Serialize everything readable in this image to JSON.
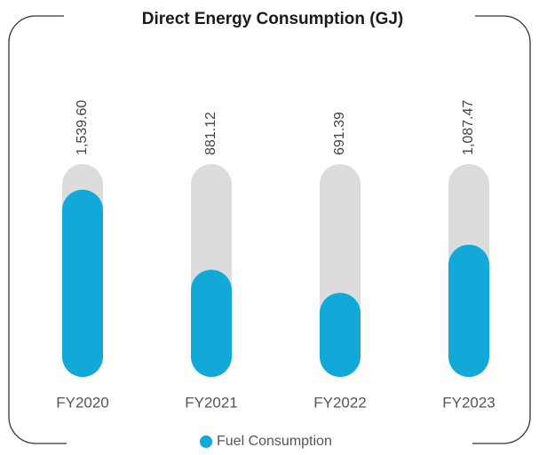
{
  "chart_data": {
    "type": "bar",
    "title": "Direct Energy Consumption (GJ)",
    "categories": [
      "FY2020",
      "FY2021",
      "FY2022",
      "FY2023"
    ],
    "series": [
      {
        "name": "Fuel Consumption",
        "color": "#12a9d8",
        "values": [
          1539.6,
          881.12,
          691.39,
          1087.47
        ],
        "value_labels": [
          "1,539.60",
          "881.12",
          "691.39",
          "1,087.47"
        ]
      }
    ],
    "track_color": "#dcdcdc",
    "ylim": [
      0,
      1750
    ]
  }
}
